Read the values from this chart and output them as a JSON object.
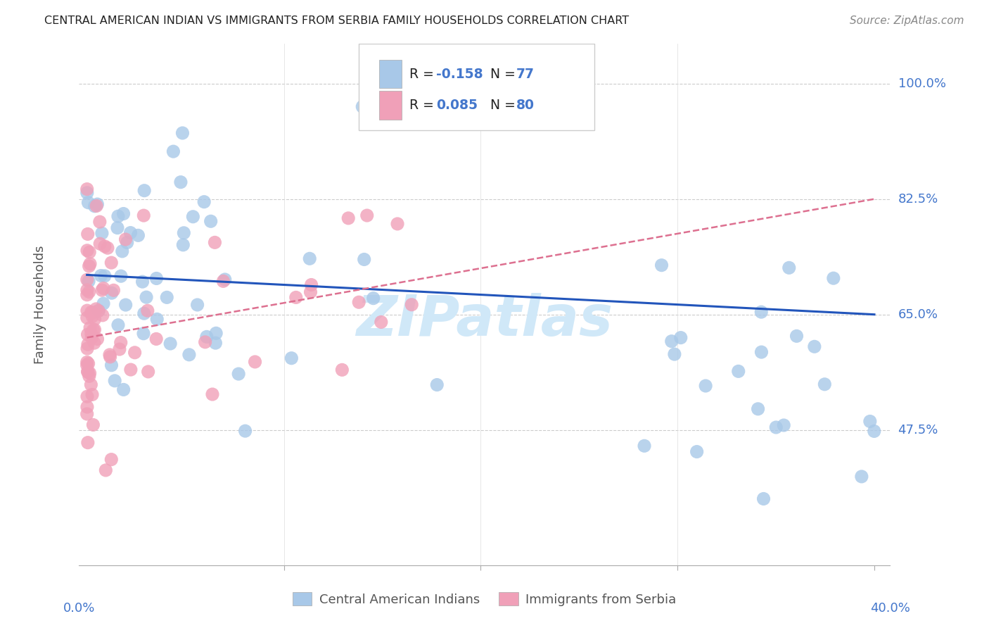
{
  "title": "CENTRAL AMERICAN INDIAN VS IMMIGRANTS FROM SERBIA FAMILY HOUSEHOLDS CORRELATION CHART",
  "source": "Source: ZipAtlas.com",
  "ylabel": "Family Households",
  "ylim": [
    0.27,
    1.06
  ],
  "xlim": [
    -0.004,
    0.408
  ],
  "blue_color": "#a8c8e8",
  "pink_color": "#f0a0b8",
  "blue_line_color": "#2255bb",
  "pink_line_color": "#dd7090",
  "axis_label_color": "#4477cc",
  "gridline_color": "#cccccc",
  "ytick_vals": [
    0.475,
    0.65,
    0.825,
    1.0
  ],
  "ytick_labels": [
    "47.5%",
    "65.0%",
    "82.5%",
    "100.0%"
  ],
  "watermark_color": "#d0e8f8",
  "blue_r": "-0.158",
  "blue_n": "77",
  "pink_r": "0.085",
  "pink_n": "80",
  "blue_seed": 12,
  "pink_seed": 34
}
